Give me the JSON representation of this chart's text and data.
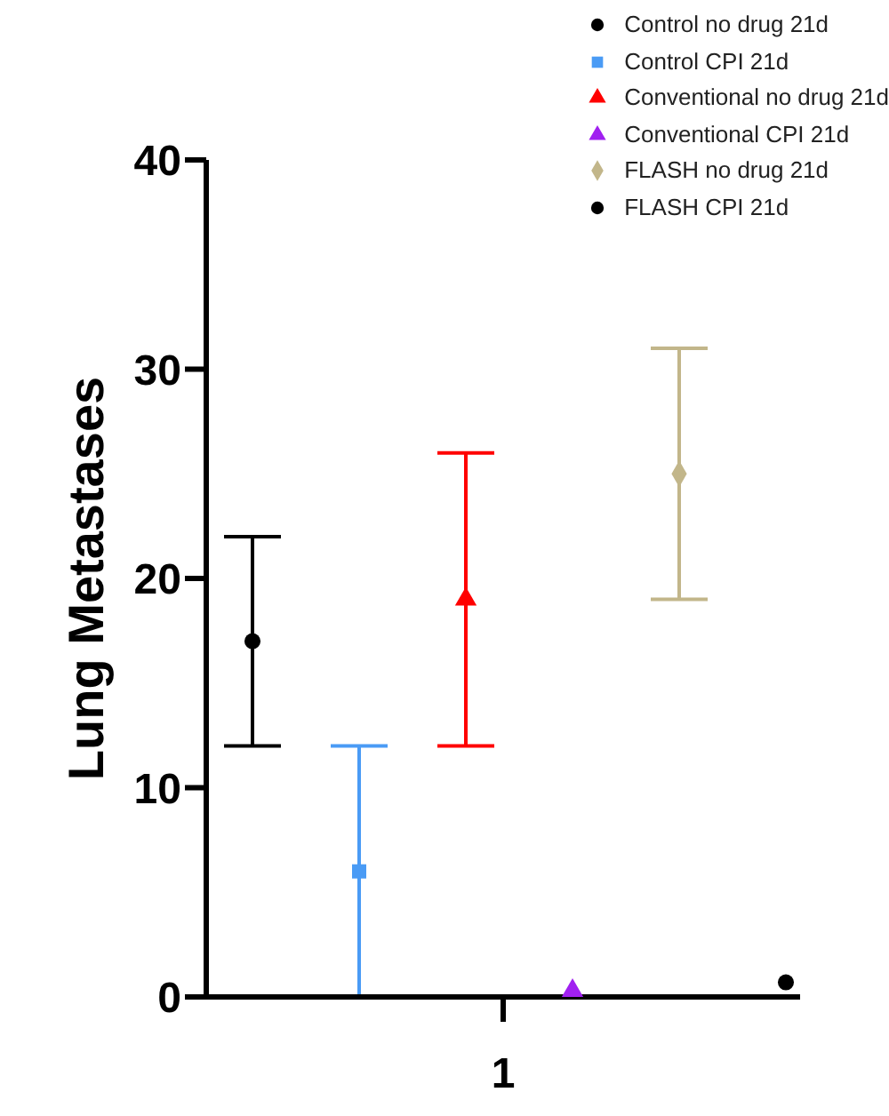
{
  "chart_data": {
    "type": "scatter",
    "ylabel": "Lung Metastases",
    "xlabel": "1",
    "categories": [
      null,
      null,
      null,
      null,
      null,
      null
    ],
    "ylim": [
      0,
      40
    ],
    "yticks": [
      0,
      10,
      20,
      30,
      40
    ],
    "legend": "top right",
    "series": [
      {
        "name": "Control no drug 21d",
        "color": "#000000",
        "marker": "circle",
        "values": [
          17,
          null,
          null,
          null,
          null,
          null
        ],
        "errors": [
          5,
          null,
          null,
          null,
          null,
          null
        ]
      },
      {
        "name": "Control CPI 21d",
        "color": "#4a9bf5",
        "marker": "square",
        "values": [
          null,
          6,
          null,
          null,
          null,
          null
        ],
        "errors": [
          null,
          6,
          null,
          null,
          null,
          null
        ]
      },
      {
        "name": "Conventional no drug 21d",
        "color": "#ff0000",
        "marker": "triangle",
        "values": [
          null,
          null,
          19,
          null,
          null,
          null
        ],
        "errors": [
          null,
          null,
          7,
          null,
          null,
          null
        ]
      },
      {
        "name": "Conventional CPI 21d",
        "color": "#a020f0",
        "marker": "triangle",
        "values": [
          null,
          null,
          null,
          0.3,
          null,
          null
        ]
      },
      {
        "name": "FLASH no drug 21d",
        "color": "#c2b68a",
        "marker": "diamond",
        "values": [
          null,
          null,
          null,
          null,
          25,
          null
        ],
        "errors": [
          null,
          null,
          null,
          null,
          6,
          null
        ]
      },
      {
        "name": "FLASH CPI 21d",
        "color": "#000000",
        "marker": "circle",
        "values": [
          null,
          null,
          null,
          null,
          null,
          0.7
        ]
      }
    ]
  }
}
